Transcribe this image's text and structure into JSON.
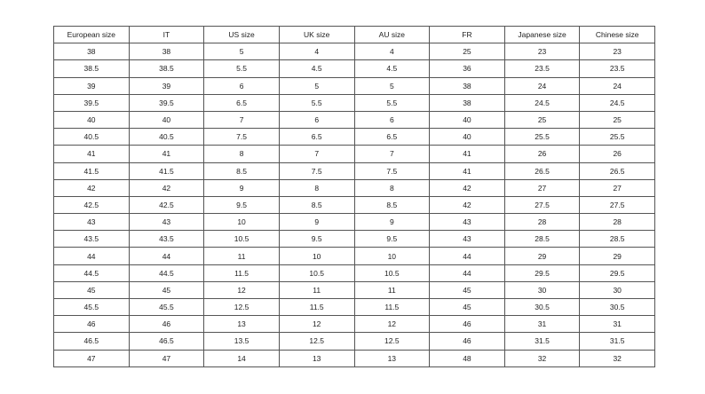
{
  "table": {
    "headers": [
      "European size",
      "IT",
      "US size",
      "UK size",
      "AU size",
      "FR",
      "Japanese size",
      "Chinese size"
    ],
    "rows": [
      [
        "38",
        "38",
        "5",
        "4",
        "4",
        "25",
        "23",
        "23"
      ],
      [
        "38.5",
        "38.5",
        "5.5",
        "4.5",
        "4.5",
        "36",
        "23.5",
        "23.5"
      ],
      [
        "39",
        "39",
        "6",
        "5",
        "5",
        "38",
        "24",
        "24"
      ],
      [
        "39.5",
        "39.5",
        "6.5",
        "5.5",
        "5.5",
        "38",
        "24.5",
        "24.5"
      ],
      [
        "40",
        "40",
        "7",
        "6",
        "6",
        "40",
        "25",
        "25"
      ],
      [
        "40.5",
        "40.5",
        "7.5",
        "6.5",
        "6.5",
        "40",
        "25.5",
        "25.5"
      ],
      [
        "41",
        "41",
        "8",
        "7",
        "7",
        "41",
        "26",
        "26"
      ],
      [
        "41.5",
        "41.5",
        "8.5",
        "7.5",
        "7.5",
        "41",
        "26.5",
        "26.5"
      ],
      [
        "42",
        "42",
        "9",
        "8",
        "8",
        "42",
        "27",
        "27"
      ],
      [
        "42.5",
        "42.5",
        "9.5",
        "8.5",
        "8.5",
        "42",
        "27.5",
        "27.5"
      ],
      [
        "43",
        "43",
        "10",
        "9",
        "9",
        "43",
        "28",
        "28"
      ],
      [
        "43.5",
        "43.5",
        "10.5",
        "9.5",
        "9.5",
        "43",
        "28.5",
        "28.5"
      ],
      [
        "44",
        "44",
        "11",
        "10",
        "10",
        "44",
        "29",
        "29"
      ],
      [
        "44.5",
        "44.5",
        "11.5",
        "10.5",
        "10.5",
        "44",
        "29.5",
        "29.5"
      ],
      [
        "45",
        "45",
        "12",
        "11",
        "11",
        "45",
        "30",
        "30"
      ],
      [
        "45.5",
        "45.5",
        "12.5",
        "11.5",
        "11.5",
        "45",
        "30.5",
        "30.5"
      ],
      [
        "46",
        "46",
        "13",
        "12",
        "12",
        "46",
        "31",
        "31"
      ],
      [
        "46.5",
        "46.5",
        "13.5",
        "12.5",
        "12.5",
        "46",
        "31.5",
        "31.5"
      ],
      [
        "47",
        "47",
        "14",
        "13",
        "13",
        "48",
        "32",
        "32"
      ]
    ]
  }
}
